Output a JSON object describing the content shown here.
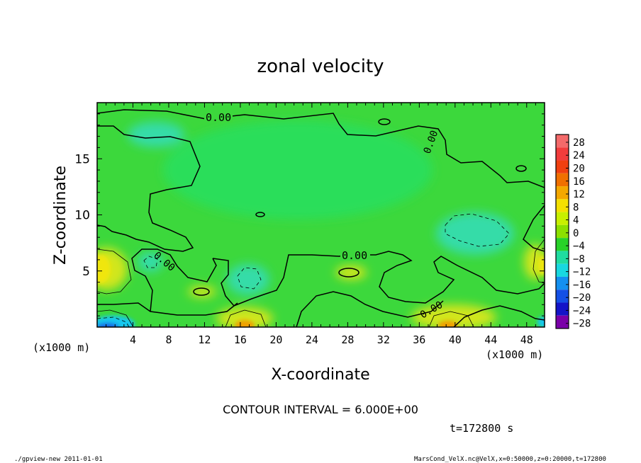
{
  "chart_data": {
    "type": "heatmap",
    "title": "zonal velocity",
    "xlabel": "X-coordinate",
    "ylabel": "Z-coordinate",
    "x_unit": "(x1000 m)",
    "y_unit": "(x1000 m)",
    "xlim": [
      0,
      50
    ],
    "ylim": [
      0,
      20
    ],
    "x_ticks": [
      4,
      8,
      12,
      16,
      20,
      24,
      28,
      32,
      36,
      40,
      44,
      48
    ],
    "y_ticks": [
      5,
      10,
      15
    ],
    "zero_contour_labels": [
      "0.00",
      "0.00",
      "0.00",
      "0.00",
      "0.00"
    ],
    "contour_interval_label": "CONTOUR INTERVAL = 6.000E+00",
    "time_label": "t=172800 s",
    "colorbar": {
      "levels": [
        28,
        24,
        20,
        16,
        12,
        8,
        4,
        0,
        -4,
        -8,
        -12,
        -16,
        -20,
        -24,
        -28
      ],
      "colors": [
        "#f46a6a",
        "#f23c3c",
        "#f04010",
        "#f07000",
        "#f4a800",
        "#f4e000",
        "#c8f000",
        "#8ce000",
        "#28d228",
        "#20dca0",
        "#18d8e0",
        "#1490f0",
        "#1450e6",
        "#1414c8",
        "#7a00a8"
      ]
    },
    "field_colors": {
      "background": "#3cd83c",
      "core": "#2cde5a",
      "cool": "#34dca8",
      "warm": "#d2e61e",
      "yellow": "#f0e610",
      "orange": "#f0a000",
      "cold": "#18c8ee",
      "deep_cold": "#1464e6"
    }
  },
  "footer": {
    "left": "./gpview-new  2011-01-01",
    "right": "MarsCond_VelX.nc@VelX,x=0:50000,z=0:20000,t=172800"
  }
}
